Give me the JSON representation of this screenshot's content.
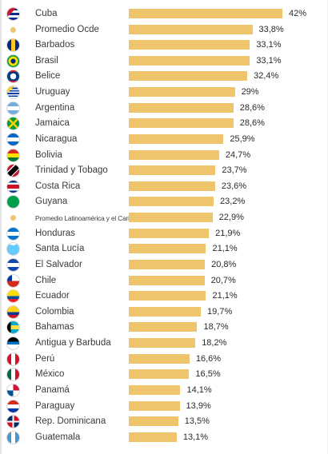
{
  "chart_data": {
    "type": "bar",
    "orientation": "horizontal",
    "title": "",
    "xlabel": "",
    "ylabel": "",
    "xlim": [
      0,
      42
    ],
    "bar_color": "#efc56b",
    "grid": false,
    "legend": "none",
    "categories": [
      "Cuba",
      "Promedio Ocde",
      "Barbados",
      "Brasil",
      "Belice",
      "Uruguay",
      "Argentina",
      "Jamaica",
      "Nicaragua",
      "Bolivia",
      "Trinidad y Tobago",
      "Costa Rica",
      "Guyana",
      "Promedio Latinoamérica y el Caribe",
      "Honduras",
      "Santa Lucía",
      "El Salvador",
      "Chile",
      "Ecuador",
      "Colombia",
      "Bahamas",
      "Antigua y Barbuda",
      "Perú",
      "México",
      "Panamá",
      "Paraguay",
      "Rep. Dominicana",
      "Guatemala"
    ],
    "values": [
      42,
      33.8,
      33.1,
      33.1,
      32.4,
      29,
      28.6,
      28.6,
      25.9,
      24.7,
      23.7,
      23.6,
      23.2,
      22.9,
      21.9,
      21.1,
      20.8,
      20.7,
      21.1,
      19.7,
      18.7,
      18.2,
      16.6,
      16.5,
      14.1,
      13.9,
      13.5,
      13.1
    ],
    "value_labels": [
      "42%",
      "33,8%",
      "33,1%",
      "33,1%",
      "32,4%",
      "29%",
      "28,6%",
      "28,6%",
      "25,9%",
      "24,7%",
      "23,7%",
      "23,6%",
      "23,2%",
      "22,9%",
      "21,9%",
      "21,1%",
      "20,8%",
      "20,7%",
      "21,1%",
      "19,7%",
      "18,7%",
      "18,2%",
      "16,6%",
      "16,5%",
      "14,1%",
      "13,9%",
      "13,5%",
      "13,1%"
    ],
    "icons": [
      "cuba-flag-icon",
      "average-dot-icon",
      "barbados-flag-icon",
      "brazil-flag-icon",
      "belize-flag-icon",
      "uruguay-flag-icon",
      "argentina-flag-icon",
      "jamaica-flag-icon",
      "nicaragua-flag-icon",
      "bolivia-flag-icon",
      "trinidad-tobago-flag-icon",
      "costa-rica-flag-icon",
      "guyana-flag-icon",
      "average-dot-icon",
      "honduras-flag-icon",
      "saint-lucia-flag-icon",
      "el-salvador-flag-icon",
      "chile-flag-icon",
      "ecuador-flag-icon",
      "colombia-flag-icon",
      "bahamas-flag-icon",
      "antigua-barbuda-flag-icon",
      "peru-flag-icon",
      "mexico-flag-icon",
      "panama-flag-icon",
      "paraguay-flag-icon",
      "dominican-republic-flag-icon",
      "guatemala-flag-icon"
    ]
  }
}
